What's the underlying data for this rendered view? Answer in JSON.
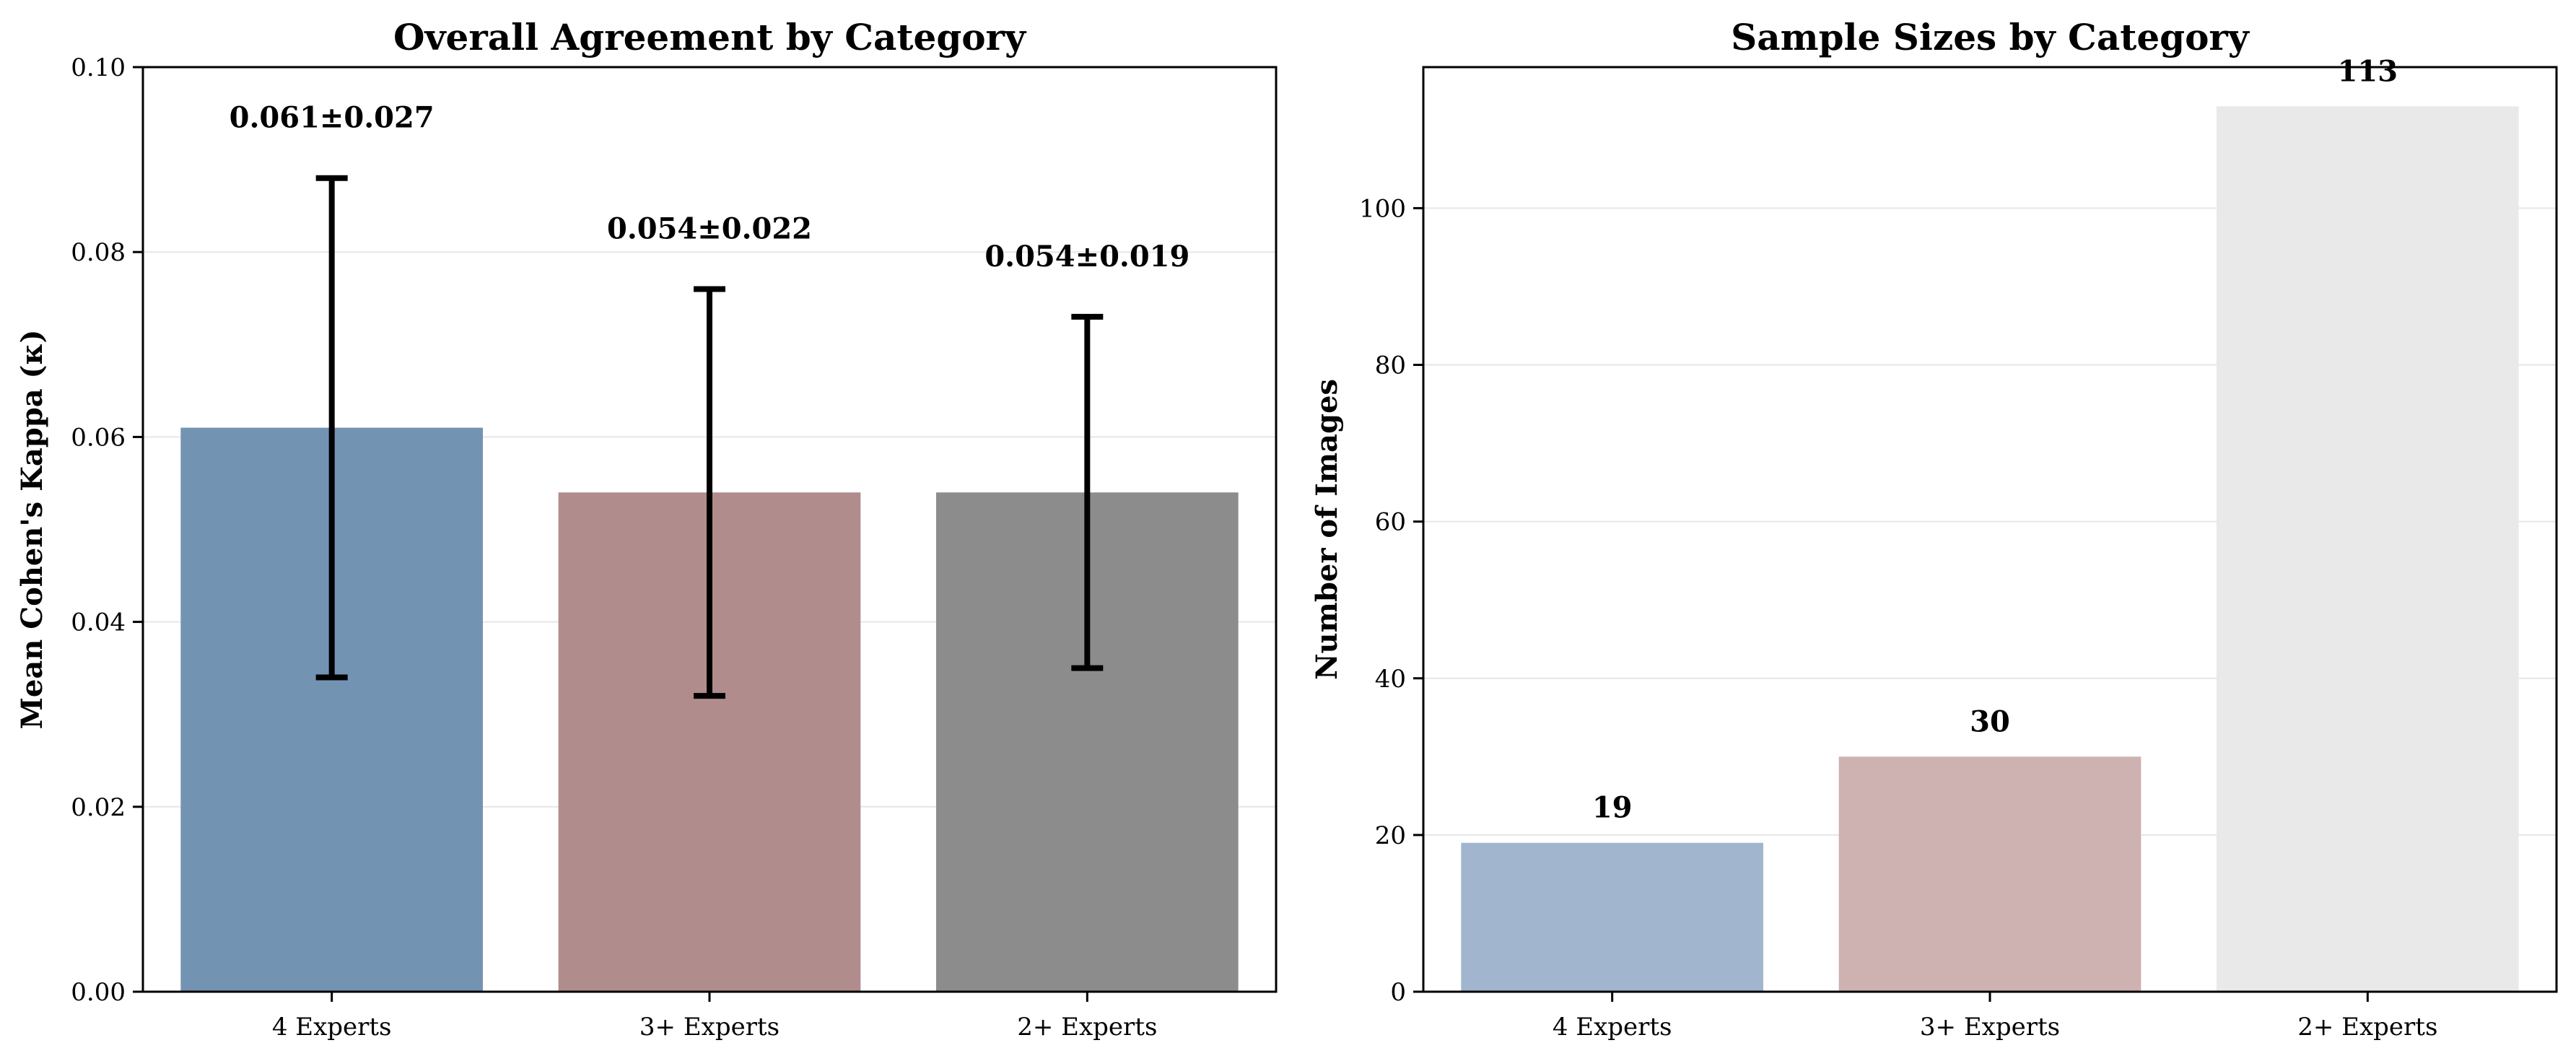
{
  "chart_data": [
    {
      "type": "bar",
      "title": "Overall Agreement by Category",
      "xlabel": "",
      "ylabel": "Mean Cohen's Kappa (κ)",
      "categories": [
        "4 Experts",
        "3+ Experts",
        "2+ Experts"
      ],
      "values": [
        0.061,
        0.054,
        0.054
      ],
      "errors": [
        0.027,
        0.022,
        0.019
      ],
      "data_labels": [
        "0.061±0.027",
        "0.054±0.022",
        "0.054±0.019"
      ],
      "colors": [
        "#7393b3",
        "#b08d8c",
        "#8c8c8c"
      ],
      "ylim": [
        0,
        0.1
      ],
      "yticks": [
        0.0,
        0.02,
        0.04,
        0.06,
        0.08,
        0.1
      ],
      "ytick_labels": [
        "0.00",
        "0.02",
        "0.04",
        "0.06",
        "0.08",
        "0.10"
      ],
      "grid": true
    },
    {
      "type": "bar",
      "title": "Sample Sizes by Category",
      "xlabel": "",
      "ylabel": "Number of Images",
      "categories": [
        "4 Experts",
        "3+ Experts",
        "2+ Experts"
      ],
      "values": [
        19,
        30,
        113
      ],
      "data_labels": [
        "19",
        "30",
        "113"
      ],
      "colors": [
        "#a1b5cf",
        "#ceb1b1",
        "#e9e9e9"
      ],
      "ylim": [
        0,
        118
      ],
      "yticks": [
        0,
        20,
        40,
        60,
        80,
        100
      ],
      "ytick_labels": [
        "0",
        "20",
        "40",
        "60",
        "80",
        "100"
      ],
      "grid": true
    }
  ]
}
